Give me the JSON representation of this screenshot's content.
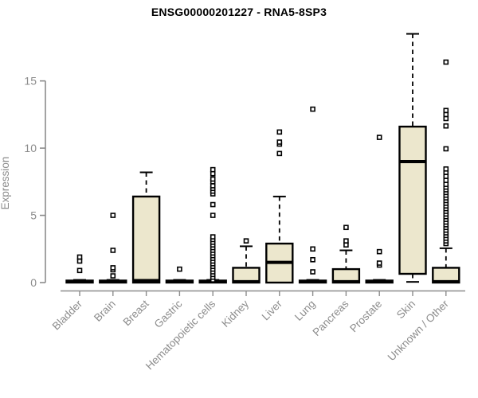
{
  "title": "ENSG00000201227 - RNA5-8SP3",
  "chart_data": {
    "type": "boxplot",
    "title": "ENSG00000201227 - RNA5-8SP3",
    "xlabel": "",
    "ylabel": "Expression",
    "ylim": [
      0,
      18.6
    ],
    "yticks": [
      0,
      5,
      10,
      15
    ],
    "grid": false,
    "legend": "none",
    "categories": [
      "Bladder",
      "Brain",
      "Breast",
      "Gastric",
      "Hematopoietic cells",
      "Kidney",
      "Liver",
      "Lung",
      "Pancreas",
      "Prostate",
      "Skin",
      "Unknown / Other"
    ],
    "boxes": [
      {
        "category": "Bladder",
        "whisker_low": 0,
        "q1": 0,
        "median": 0.07,
        "q3": 0.15,
        "whisker_high": 0.2,
        "outliers": [
          0.9,
          1.6,
          1.9
        ]
      },
      {
        "category": "Brain",
        "whisker_low": 0,
        "q1": 0,
        "median": 0.07,
        "q3": 0.15,
        "whisker_high": 0.2,
        "outliers": [
          0.5,
          0.95,
          1.1,
          2.4,
          5.0
        ]
      },
      {
        "category": "Breast",
        "whisker_low": 0,
        "q1": 0,
        "median": 0.15,
        "q3": 6.4,
        "whisker_high": 8.2,
        "outliers": []
      },
      {
        "category": "Gastric",
        "whisker_low": 0,
        "q1": 0,
        "median": 0.07,
        "q3": 0.15,
        "whisker_high": 0.2,
        "outliers": [
          1.0
        ]
      },
      {
        "category": "Hematopoietic cells",
        "whisker_low": 0,
        "q1": 0,
        "median": 0.07,
        "q3": 0.15,
        "whisker_high": 0.2,
        "outliers": [
          0.2,
          0.4,
          0.6,
          0.8,
          1.0,
          1.2,
          1.4,
          1.6,
          1.8,
          2.0,
          2.2,
          2.4,
          2.6,
          2.8,
          3.0,
          3.2,
          3.4,
          5.0,
          5.8,
          6.6,
          6.8,
          7.0,
          7.2,
          7.5,
          7.7,
          8.1,
          8.4
        ]
      },
      {
        "category": "Kidney",
        "whisker_low": 0,
        "q1": 0,
        "median": 0.07,
        "q3": 1.1,
        "whisker_high": 2.7,
        "outliers": [
          3.1
        ]
      },
      {
        "category": "Liver",
        "whisker_low": 0,
        "q1": 0,
        "median": 1.5,
        "q3": 2.9,
        "whisker_high": 6.4,
        "outliers": [
          9.6,
          10.3,
          10.45,
          11.2
        ]
      },
      {
        "category": "Lung",
        "whisker_low": 0,
        "q1": 0,
        "median": 0.07,
        "q3": 0.15,
        "whisker_high": 0.2,
        "outliers": [
          0.8,
          1.7,
          2.5,
          12.9
        ]
      },
      {
        "category": "Pancreas",
        "whisker_low": 0,
        "q1": 0,
        "median": 0.07,
        "q3": 1.0,
        "whisker_high": 2.4,
        "outliers": [
          2.8,
          3.1,
          4.1
        ]
      },
      {
        "category": "Prostate",
        "whisker_low": 0,
        "q1": 0,
        "median": 0.07,
        "q3": 0.15,
        "whisker_high": 0.2,
        "outliers": [
          1.3,
          1.45,
          2.3,
          10.8
        ]
      },
      {
        "category": "Skin",
        "whisker_low": 0.05,
        "q1": 0.65,
        "median": 9.0,
        "q3": 11.6,
        "whisker_high": 18.5,
        "outliers": []
      },
      {
        "category": "Unknown / Other",
        "whisker_low": 0,
        "q1": 0,
        "median": 0.07,
        "q3": 1.1,
        "whisker_high": 2.55,
        "outliers": [
          2.9,
          3.1,
          3.3,
          3.5,
          3.7,
          3.9,
          4.1,
          4.3,
          4.5,
          4.7,
          4.9,
          5.1,
          5.3,
          5.5,
          5.7,
          5.9,
          6.1,
          6.3,
          6.5,
          6.7,
          6.9,
          7.1,
          7.3,
          7.6,
          7.9,
          8.2,
          8.45,
          9.95,
          11.65,
          12.2,
          12.5,
          12.8,
          16.4
        ]
      }
    ],
    "colors": {
      "box_fill": "#ece7cd",
      "box_border": "#000000",
      "median": "#000000",
      "whisker": "#000000",
      "outlier": "#000000",
      "axis": "#8c8c8c",
      "tick_label": "#8c8c8c",
      "title": "#000000",
      "background": "#ffffff"
    }
  }
}
